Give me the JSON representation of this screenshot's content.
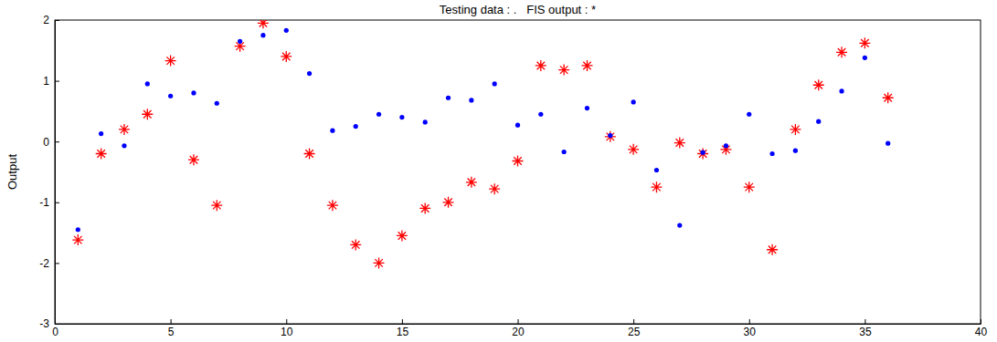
{
  "chart_data": {
    "type": "scatter",
    "title": "Testing data : .   FIS output : *",
    "y_label": "Output",
    "x": [
      1,
      2,
      3,
      4,
      5,
      6,
      7,
      8,
      9,
      10,
      11,
      12,
      13,
      14,
      15,
      16,
      17,
      18,
      19,
      20,
      21,
      22,
      23,
      24,
      25,
      26,
      27,
      28,
      29,
      30,
      31,
      32,
      33,
      34,
      35,
      36
    ],
    "series": [
      {
        "color": "#ff0000",
        "marker": "asterisk",
        "values": [
          -1.62,
          -0.2,
          0.2,
          0.45,
          1.33,
          -0.3,
          -1.05,
          1.57,
          1.95,
          1.4,
          -0.2,
          -1.05,
          -1.7,
          -2.0,
          -1.55,
          -1.1,
          -1.0,
          -0.67,
          -0.78,
          -0.32,
          1.25,
          1.18,
          1.25,
          0.08,
          -0.13,
          -0.75,
          -0.02,
          -0.2,
          -0.13,
          -0.75,
          -1.78,
          0.2,
          0.93,
          1.47,
          1.62,
          0.72
        ]
      },
      {
        "color": "#0000ff",
        "marker": "dot",
        "values": [
          -1.45,
          0.13,
          -0.07,
          0.95,
          0.75,
          0.8,
          0.63,
          1.65,
          1.75,
          1.83,
          1.12,
          0.18,
          0.25,
          0.45,
          0.4,
          0.32,
          0.72,
          0.68,
          0.95,
          0.27,
          0.45,
          -0.17,
          0.55,
          0.1,
          0.65,
          -0.47,
          -1.38,
          -0.18,
          -0.07,
          0.45,
          -0.2,
          -0.15,
          0.33,
          0.83,
          1.38,
          -0.03
        ]
      }
    ],
    "xlim": [
      0,
      40
    ],
    "xticks": [
      0,
      5,
      10,
      15,
      20,
      25,
      30,
      35,
      40
    ],
    "ylim": [
      -3,
      2
    ],
    "yticks": [
      -3,
      -2,
      -1,
      0,
      1,
      2
    ],
    "grid": false
  }
}
